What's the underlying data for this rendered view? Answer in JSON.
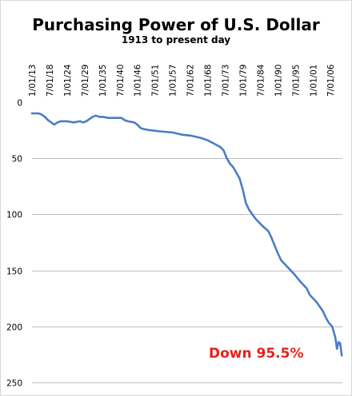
{
  "chart_data": {
    "type": "line",
    "title": "Purchasing Power of U.S. Dollar",
    "subtitle": "1913 to present day",
    "xlabel": "",
    "ylabel": "",
    "y_inverted": true,
    "ylim": [
      0,
      250
    ],
    "y_ticks": [
      0,
      50,
      100,
      150,
      200,
      250
    ],
    "x_range": [
      1913,
      2010.2
    ],
    "x_ticks": [
      {
        "label": "1/01/13",
        "year": 1913.0
      },
      {
        "label": "7/01/18",
        "year": 1918.5
      },
      {
        "label": "1/01/24",
        "year": 1924.0
      },
      {
        "label": "7/01/29",
        "year": 1929.5
      },
      {
        "label": "1/01/35",
        "year": 1935.0
      },
      {
        "label": "7/01/40",
        "year": 1940.5
      },
      {
        "label": "1/01/46",
        "year": 1946.0
      },
      {
        "label": "7/01/51",
        "year": 1951.5
      },
      {
        "label": "1/01/57",
        "year": 1957.0
      },
      {
        "label": "7/01/62",
        "year": 1962.5
      },
      {
        "label": "1/01/68",
        "year": 1968.0
      },
      {
        "label": "7/01/73",
        "year": 1973.5
      },
      {
        "label": "1/01/79",
        "year": 1979.0
      },
      {
        "label": "7/01/84",
        "year": 1984.5
      },
      {
        "label": "1/01/90",
        "year": 1990.0
      },
      {
        "label": "7/01/95",
        "year": 1995.5
      },
      {
        "label": "1/01/01",
        "year": 2001.0
      },
      {
        "label": "7/01/06",
        "year": 2006.5
      }
    ],
    "grid": {
      "horizontal": true,
      "vertical": false
    },
    "annotation": {
      "text": "Down 95.5%",
      "color": "#e8201a"
    },
    "line_color": "#4a7ec4",
    "series": [
      {
        "x": [
          1913,
          1915,
          1916,
          1917,
          1918,
          1919,
          1920,
          1921,
          1922,
          1924,
          1926,
          1928,
          1929,
          1930,
          1931,
          1932,
          1933,
          1934,
          1935,
          1937,
          1939,
          1941,
          1942,
          1943,
          1945,
          1946,
          1947,
          1948,
          1950,
          1953,
          1957,
          1960,
          1963,
          1966,
          1968,
          1970,
          1972,
          1973,
          1974,
          1975,
          1976,
          1977,
          1978,
          1979,
          1980,
          1981,
          1982,
          1983,
          1985,
          1987,
          1988,
          1989,
          1990,
          1991,
          1993,
          1995,
          1997,
          1999,
          2000,
          2002,
          2004,
          2005,
          2006,
          2007,
          2007.5,
          2008,
          2008.5,
          2009,
          2009.5,
          2010
        ],
        "y": [
          10,
          10,
          11,
          13,
          16,
          18,
          20,
          18,
          17,
          17,
          18,
          17,
          18,
          17,
          15,
          13,
          12,
          13,
          13,
          14,
          14,
          14,
          16,
          17,
          18,
          20,
          23,
          24,
          25,
          26,
          27,
          29,
          30,
          32,
          34,
          37,
          40,
          43,
          50,
          55,
          58,
          63,
          68,
          78,
          90,
          96,
          100,
          104,
          110,
          115,
          121,
          128,
          135,
          141,
          147,
          153,
          160,
          166,
          172,
          178,
          186,
          192,
          197,
          200,
          205,
          210,
          220,
          214,
          215,
          226
        ]
      }
    ]
  }
}
